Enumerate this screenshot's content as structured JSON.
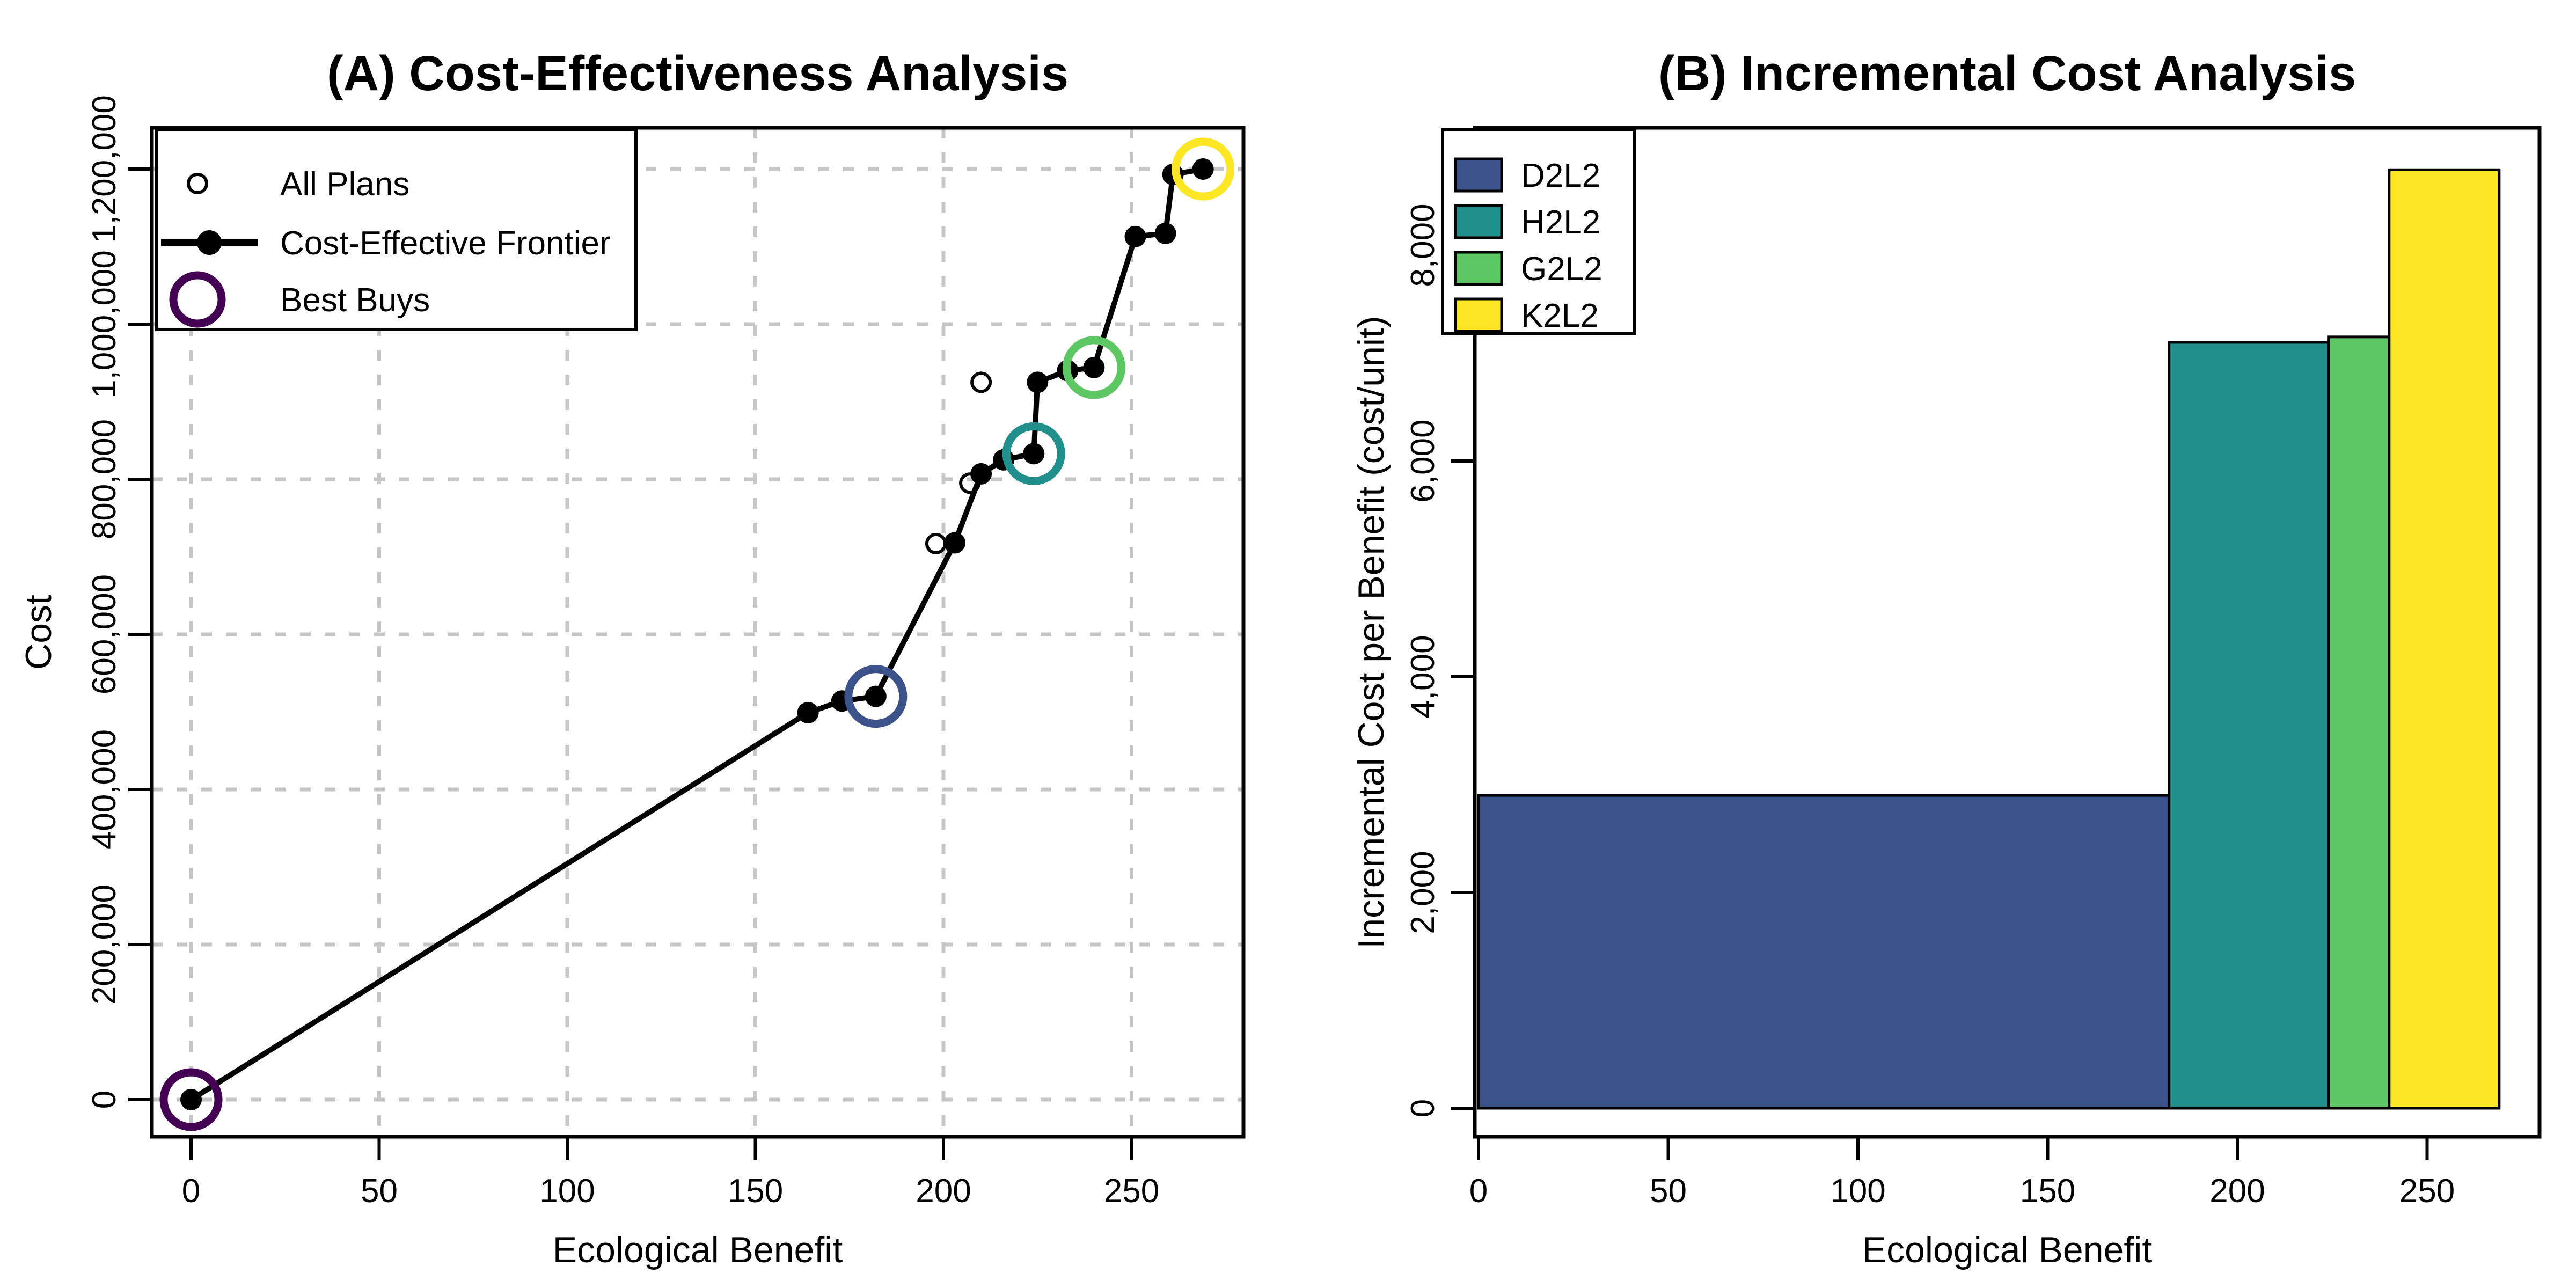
{
  "figure": {
    "background": "#ffffff",
    "palette": {
      "best_buy_origin": "#440154",
      "d2l2": "#3B528B",
      "h2l2": "#21908C",
      "g2l2": "#5DC863",
      "k2l2": "#FDE725",
      "grid": "#c6c6c6",
      "frontier": "#000000"
    }
  },
  "chart_data": [
    {
      "type": "line",
      "panel": "A",
      "title": "(A) Cost-Effectiveness Analysis",
      "xlabel": "Ecological Benefit",
      "ylabel": "Cost",
      "xlim": [
        -10,
        280
      ],
      "ylim": [
        0,
        1253000
      ],
      "grid": true,
      "x_ticks": [
        0,
        50,
        100,
        150,
        200,
        250
      ],
      "x_tick_labels": [
        "0",
        "50",
        "100",
        "150",
        "200",
        "250"
      ],
      "y_ticks": [
        0,
        200000,
        400000,
        600000,
        800000,
        1000000,
        1200000
      ],
      "y_tick_labels": [
        "0",
        "200,000",
        "400,000",
        "600,000",
        "800,000",
        "1,000,000",
        "1,200,000"
      ],
      "series": [
        {
          "name": "Cost-Effective Frontier",
          "type": "line-with-markers",
          "color": "#000000",
          "points": [
            [
              0,
              0
            ],
            [
              164,
              499000
            ],
            [
              173,
              514000
            ],
            [
              182,
              520000
            ],
            [
              203,
              718000
            ],
            [
              210,
              807000
            ],
            [
              216,
              825000
            ],
            [
              224,
              833000
            ],
            [
              225,
              925000
            ],
            [
              233,
              940000
            ],
            [
              240,
              944000
            ],
            [
              251,
              1113000
            ],
            [
              259,
              1117000
            ],
            [
              261,
              1193000
            ],
            [
              269,
              1200000
            ]
          ]
        },
        {
          "name": "All Plans",
          "type": "scatter-open-circle",
          "color": "#000000",
          "points": [
            [
              198,
              717000
            ],
            [
              207,
              795000
            ],
            [
              210,
              925000
            ]
          ]
        },
        {
          "name": "Best Buys",
          "type": "scatter-ring",
          "points": [
            {
              "x": 0,
              "y": 0,
              "color": "#440154"
            },
            {
              "x": 182,
              "y": 520000,
              "color": "#3B528B",
              "plan": "D2L2"
            },
            {
              "x": 224,
              "y": 833000,
              "color": "#21908C",
              "plan": "H2L2"
            },
            {
              "x": 240,
              "y": 944000,
              "color": "#5DC863",
              "plan": "G2L2"
            },
            {
              "x": 269,
              "y": 1200000,
              "color": "#FDE725",
              "plan": "K2L2"
            }
          ]
        }
      ],
      "legend": {
        "position": "top-left",
        "entries": [
          {
            "label": "All Plans",
            "symbol": "open-circle"
          },
          {
            "label": "Cost-Effective Frontier",
            "symbol": "line-dot"
          },
          {
            "label": "Best Buys",
            "symbol": "purple-ring",
            "color": "#440154"
          }
        ]
      }
    },
    {
      "type": "bar",
      "panel": "B",
      "title": "(B) Incremental Cost Analysis",
      "xlabel": "Ecological Benefit",
      "ylabel": "Incremental Cost per Benefit (cost/unit)",
      "xlim": [
        -1,
        282
      ],
      "ylim": [
        0,
        9100
      ],
      "grid": false,
      "x_ticks": [
        0,
        50,
        100,
        150,
        200,
        250
      ],
      "x_tick_labels": [
        "0",
        "50",
        "100",
        "150",
        "200",
        "250"
      ],
      "y_ticks": [
        0,
        2000,
        4000,
        6000,
        8000
      ],
      "y_tick_labels": [
        "0",
        "2,000",
        "4,000",
        "6,000",
        "8,000"
      ],
      "bars": [
        {
          "name": "D2L2",
          "x_from": 0,
          "x_to": 182,
          "value": 2900,
          "color": "#3B528B"
        },
        {
          "name": "H2L2",
          "x_from": 182,
          "x_to": 224,
          "value": 7100,
          "color": "#21908C"
        },
        {
          "name": "G2L2",
          "x_from": 224,
          "x_to": 240,
          "value": 7150,
          "color": "#5DC863"
        },
        {
          "name": "K2L2",
          "x_from": 240,
          "x_to": 269,
          "value": 8700,
          "color": "#FDE725"
        }
      ],
      "legend": {
        "position": "top-left",
        "entries": [
          {
            "label": "D2L2",
            "color": "#3B528B"
          },
          {
            "label": "H2L2",
            "color": "#21908C"
          },
          {
            "label": "G2L2",
            "color": "#5DC863"
          },
          {
            "label": "K2L2",
            "color": "#FDE725"
          }
        ]
      }
    }
  ]
}
